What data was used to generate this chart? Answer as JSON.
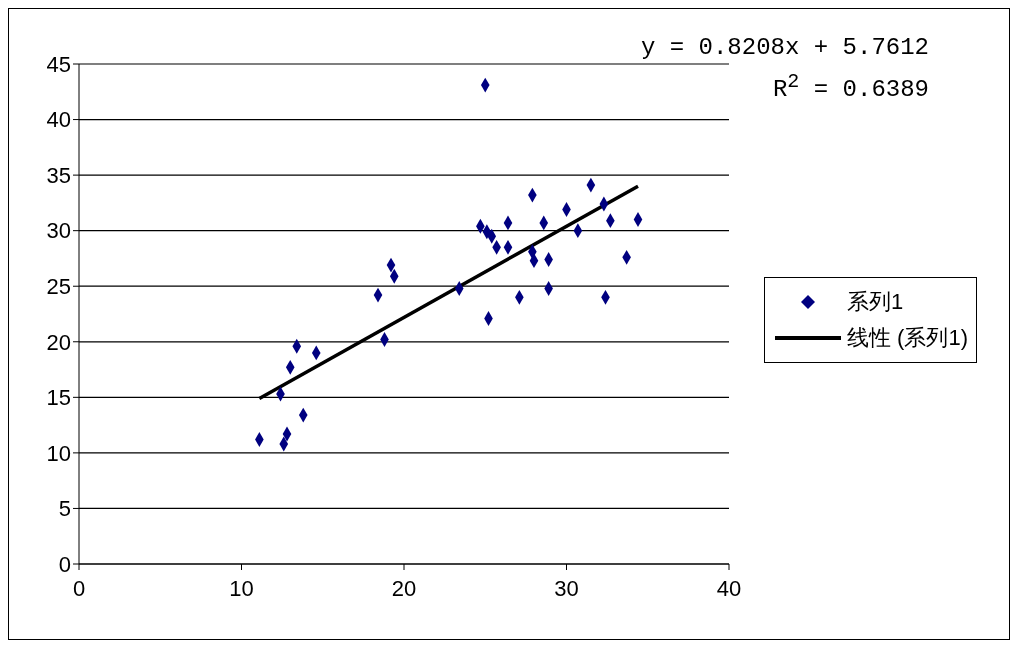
{
  "chart_data": {
    "type": "scatter",
    "xlim": [
      0,
      40
    ],
    "xticks": [
      0,
      10,
      20,
      30,
      40
    ],
    "ylim": [
      0,
      45
    ],
    "yticks": [
      0,
      5,
      10,
      15,
      20,
      25,
      30,
      35,
      40,
      45
    ],
    "grid": "y",
    "legend": "right",
    "annotations": [
      "y = 0.8208x + 5.7612",
      "R$^{2}$ = 0.6389"
    ],
    "series": [
      {
        "name": "系列1",
        "marker": "diamond",
        "color": "#000080",
        "x": [
          11.1,
          12.4,
          12.6,
          12.8,
          13.0,
          13.4,
          13.8,
          14.6,
          18.4,
          18.8,
          19.2,
          19.4,
          23.4,
          25.0,
          24.7,
          25.1,
          25.4,
          25.2,
          25.7,
          26.4,
          26.4,
          27.1,
          27.9,
          27.9,
          28.0,
          28.6,
          28.9,
          28.9,
          30.0,
          30.7,
          31.5,
          32.3,
          32.4,
          32.7,
          33.7,
          34.4
        ],
        "values": [
          11.2,
          15.3,
          10.8,
          11.7,
          17.7,
          19.6,
          13.4,
          19.0,
          24.2,
          20.2,
          26.9,
          25.9,
          24.8,
          43.1,
          30.4,
          29.9,
          29.5,
          22.1,
          28.5,
          30.7,
          28.5,
          24.0,
          33.2,
          28.1,
          27.3,
          30.7,
          27.4,
          24.8,
          31.9,
          30.0,
          34.1,
          32.4,
          24.0,
          30.9,
          27.6,
          31.0
        ]
      },
      {
        "name": "线性 (系列1)",
        "type": "line",
        "marker": "none",
        "color": "#000000",
        "x": [
          11.1,
          34.4
        ],
        "values": [
          14.9,
          34.0
        ]
      }
    ]
  }
}
